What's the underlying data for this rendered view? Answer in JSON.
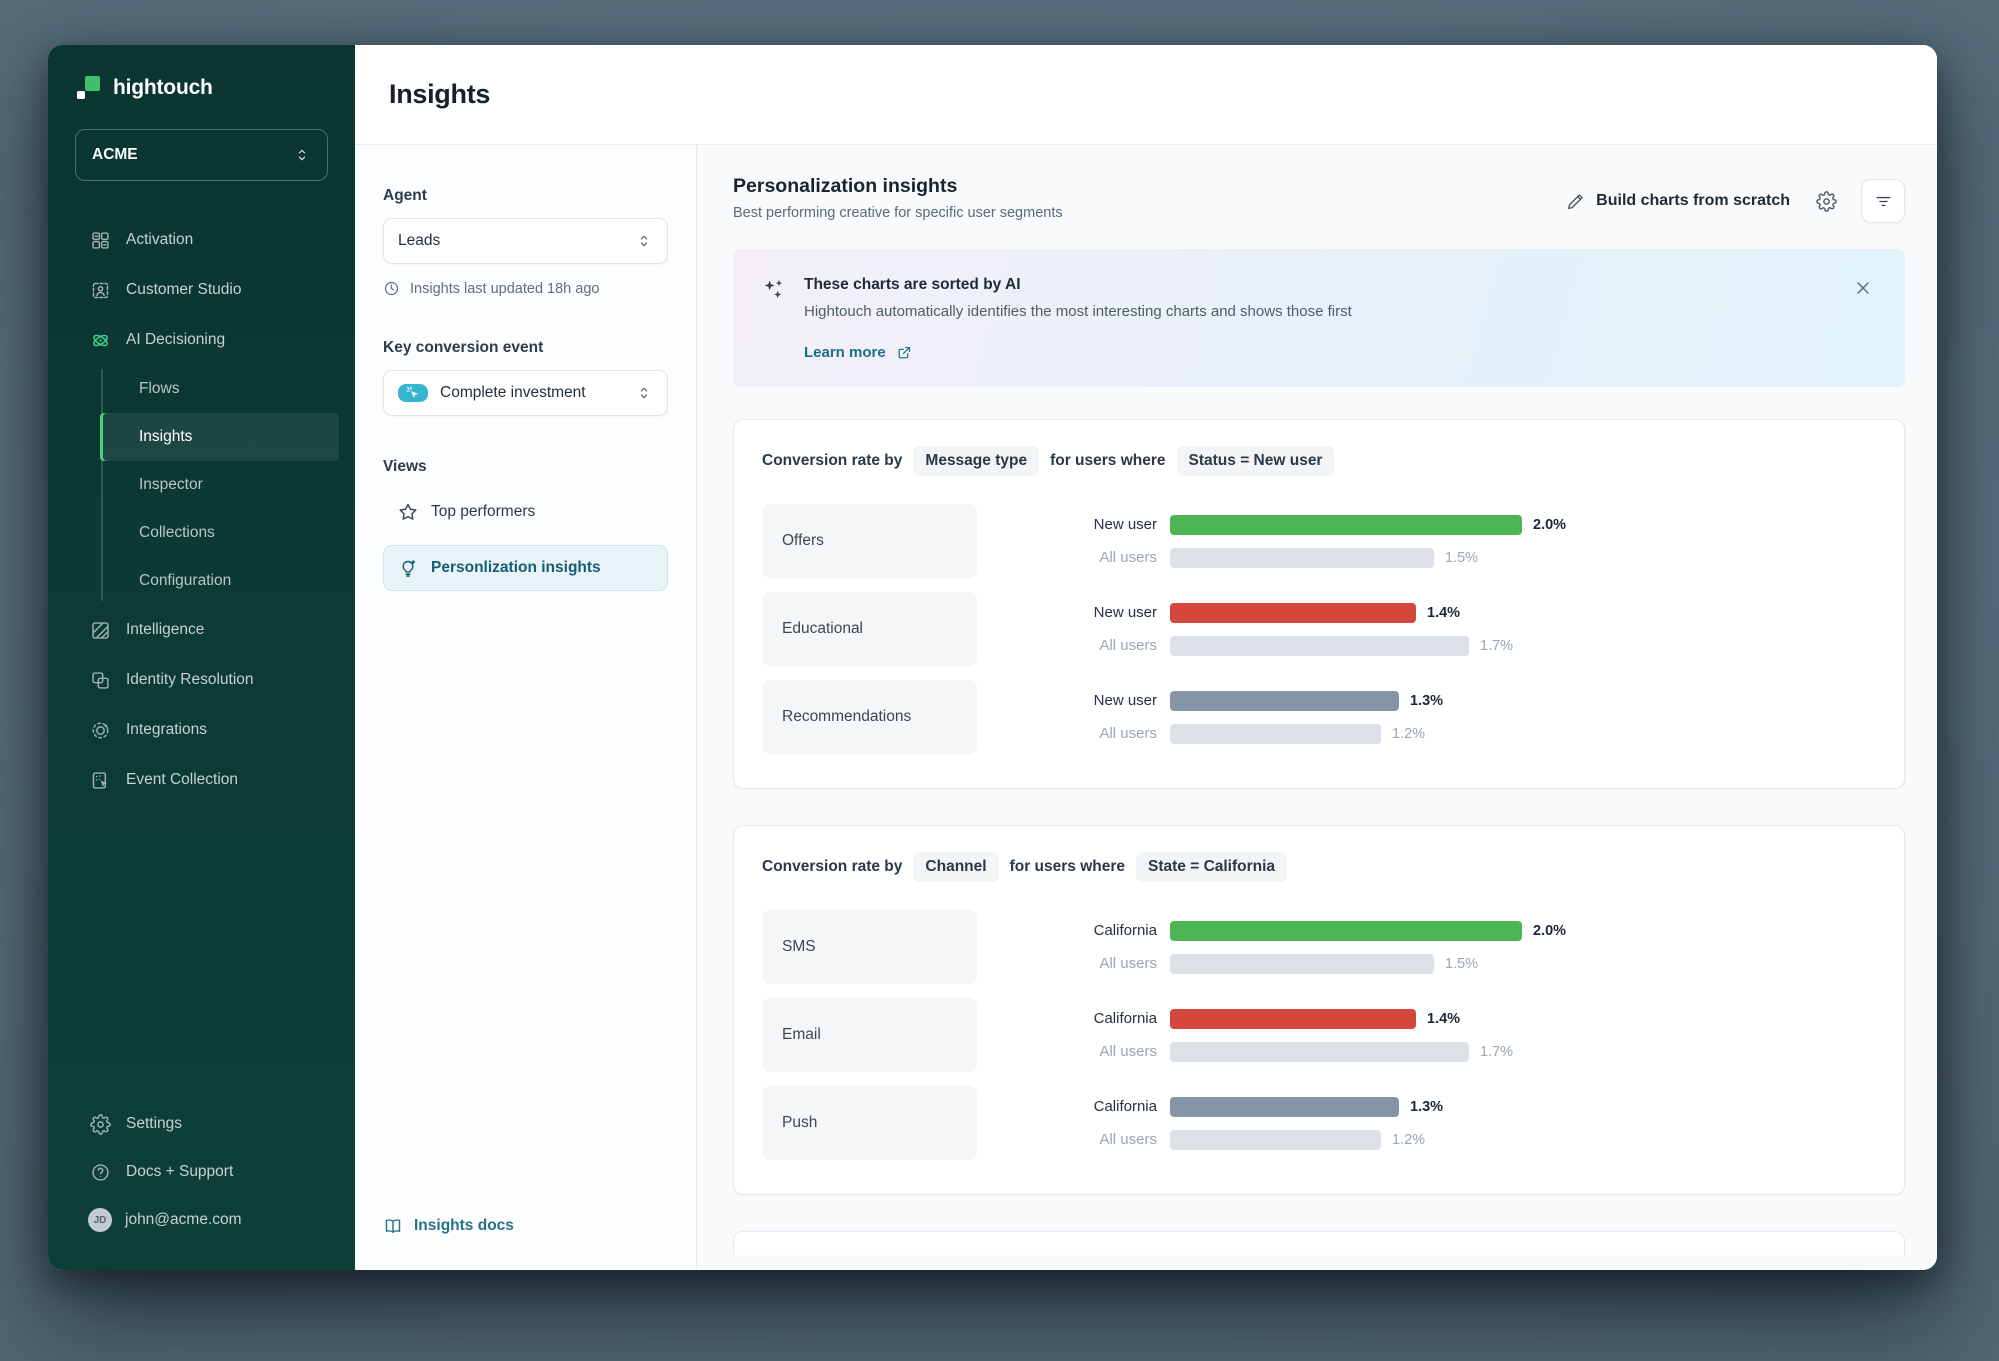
{
  "window": {
    "page_title": "Insights"
  },
  "sidebar": {
    "logo_text": "hightouch",
    "workspace": "ACME",
    "items": [
      {
        "label": "Activation",
        "icon": "activation-icon"
      },
      {
        "label": "Customer Studio",
        "icon": "customer-studio-icon"
      },
      {
        "label": "AI Decisioning",
        "icon": "ai-decisioning-icon",
        "accent": true,
        "children": [
          {
            "label": "Flows"
          },
          {
            "label": "Insights",
            "active": true
          },
          {
            "label": "Inspector"
          },
          {
            "label": "Collections"
          },
          {
            "label": "Configuration"
          }
        ]
      },
      {
        "label": "Intelligence",
        "icon": "intelligence-icon"
      },
      {
        "label": "Identity Resolution",
        "icon": "identity-resolution-icon"
      },
      {
        "label": "Integrations",
        "icon": "integrations-icon"
      },
      {
        "label": "Event Collection",
        "icon": "event-collection-icon"
      }
    ],
    "footer_items": [
      {
        "label": "Settings",
        "icon": "gear-icon"
      },
      {
        "label": "Docs + Support",
        "icon": "help-icon"
      }
    ],
    "user": {
      "email": "john@acme.com",
      "initials": "JD"
    }
  },
  "filters": {
    "agent_label": "Agent",
    "agent_value": "Leads",
    "last_updated": "Insights last updated 18h ago",
    "conversion_label": "Key conversion event",
    "conversion_value": "Complete investment",
    "views_label": "Views",
    "views": [
      {
        "label": "Top performers",
        "icon": "star-icon"
      },
      {
        "label": "Personlization insights",
        "icon": "lightbulb-icon",
        "active": true
      }
    ],
    "docs_link": "Insights docs"
  },
  "main": {
    "title": "Personalization insights",
    "subtitle": "Best performing creative for specific user segments",
    "build_button": "Build charts from scratch",
    "banner": {
      "title": "These charts are sorted by AI",
      "description": "Hightouch automatically identifies the most interesting charts and shows those first",
      "link": "Learn more"
    }
  },
  "chart_data": [
    {
      "type": "bar",
      "title_prefix": "Conversion rate by",
      "dimension": "Message type",
      "title_middle": "for users where",
      "segment_filter": "Status = New user",
      "axis_max": 2.0,
      "value_unit": "%",
      "rows": [
        {
          "category": "Offers",
          "bars": [
            {
              "label": "New user",
              "value": 2.0,
              "display": "2.0%",
              "color": "#4cb554",
              "emphasis": true
            },
            {
              "label": "All users",
              "value": 1.5,
              "display": "1.5%",
              "color": "#dce1e8"
            }
          ]
        },
        {
          "category": "Educational",
          "bars": [
            {
              "label": "New user",
              "value": 1.4,
              "display": "1.4%",
              "color": "#d5473c",
              "emphasis": true
            },
            {
              "label": "All users",
              "value": 1.7,
              "display": "1.7%",
              "color": "#dce1e8"
            }
          ]
        },
        {
          "category": "Recommendations",
          "bars": [
            {
              "label": "New user",
              "value": 1.3,
              "display": "1.3%",
              "color": "#8695a3",
              "emphasis": true
            },
            {
              "label": "All users",
              "value": 1.2,
              "display": "1.2%",
              "color": "#dce1e8"
            }
          ]
        }
      ]
    },
    {
      "type": "bar",
      "title_prefix": "Conversion rate by",
      "dimension": "Channel",
      "title_middle": "for users where",
      "segment_filter": "State = California",
      "axis_max": 2.0,
      "value_unit": "%",
      "rows": [
        {
          "category": "SMS",
          "bars": [
            {
              "label": "California",
              "value": 2.0,
              "display": "2.0%",
              "color": "#4cb554",
              "emphasis": true
            },
            {
              "label": "All users",
              "value": 1.5,
              "display": "1.5%",
              "color": "#dce1e8"
            }
          ]
        },
        {
          "category": "Email",
          "bars": [
            {
              "label": "California",
              "value": 1.4,
              "display": "1.4%",
              "color": "#d5473c",
              "emphasis": true
            },
            {
              "label": "All users",
              "value": 1.7,
              "display": "1.7%",
              "color": "#dce1e8"
            }
          ]
        },
        {
          "category": "Push",
          "bars": [
            {
              "label": "California",
              "value": 1.3,
              "display": "1.3%",
              "color": "#8695a3",
              "emphasis": true
            },
            {
              "label": "All users",
              "value": 1.2,
              "display": "1.2%",
              "color": "#dce1e8"
            }
          ]
        }
      ]
    }
  ],
  "colors": {
    "accent_green": "#4cb554",
    "negative_red": "#d5473c",
    "neutral_slate": "#8695a3",
    "baseline_gray": "#dce1e8",
    "sidebar_bg": "#0b3833",
    "active_nav_green": "#48d17a",
    "teal_link": "#1d6e88",
    "event_icon_teal": "#35b5ce"
  }
}
